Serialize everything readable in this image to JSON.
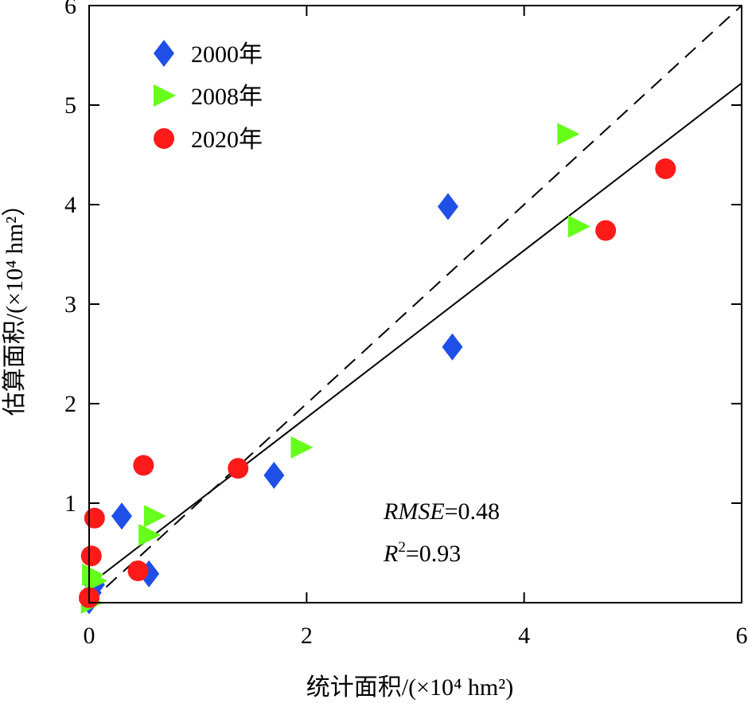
{
  "chart_data": {
    "type": "scatter",
    "xlim": [
      0,
      6
    ],
    "ylim": [
      0,
      6
    ],
    "x_ticks": [
      0,
      2,
      4,
      6
    ],
    "y_ticks": [
      1,
      2,
      3,
      4,
      5,
      6
    ],
    "xlabel": "统计面积/(×10⁴ hm²)",
    "ylabel": "估算面积/(×10⁴ hm²）",
    "legend_position": "top-left",
    "colors": {
      "2000年": "#1f4fe6",
      "2008年": "#66ff1a",
      "2020年": "#ff1a1a"
    },
    "series": [
      {
        "name": "2000年",
        "marker": "diamond",
        "points": [
          [
            0.0,
            0.02
          ],
          [
            0.02,
            0.1
          ],
          [
            0.05,
            0.18
          ],
          [
            0.3,
            0.87
          ],
          [
            0.55,
            0.29
          ],
          [
            1.7,
            1.28
          ],
          [
            3.3,
            3.98
          ],
          [
            3.34,
            2.57
          ]
        ]
      },
      {
        "name": "2008年",
        "marker": "triangle-right",
        "points": [
          [
            0.02,
            0.0
          ],
          [
            0.03,
            0.28
          ],
          [
            0.06,
            0.22
          ],
          [
            0.55,
            0.68
          ],
          [
            0.6,
            0.87
          ],
          [
            1.95,
            1.56
          ],
          [
            4.4,
            4.71
          ],
          [
            4.5,
            3.78
          ]
        ]
      },
      {
        "name": "2020年",
        "marker": "circle",
        "points": [
          [
            0.0,
            0.05
          ],
          [
            0.02,
            0.47
          ],
          [
            0.05,
            0.85
          ],
          [
            0.45,
            0.32
          ],
          [
            0.5,
            1.38
          ],
          [
            1.37,
            1.35
          ],
          [
            4.75,
            3.74
          ],
          [
            5.3,
            4.36
          ]
        ]
      }
    ],
    "reference_line": {
      "style": "dashed",
      "description": "1:1 line",
      "from": [
        0,
        0
      ],
      "to": [
        6,
        6
      ]
    },
    "fit_line": {
      "style": "solid",
      "from": [
        0,
        0.18
      ],
      "to": [
        6,
        5.22
      ]
    },
    "annotations": {
      "rmse_label": "RMSE",
      "rmse_value": "=0.48",
      "r2_label": "R",
      "r2_sup": "2",
      "r2_value": "=0.93"
    }
  }
}
